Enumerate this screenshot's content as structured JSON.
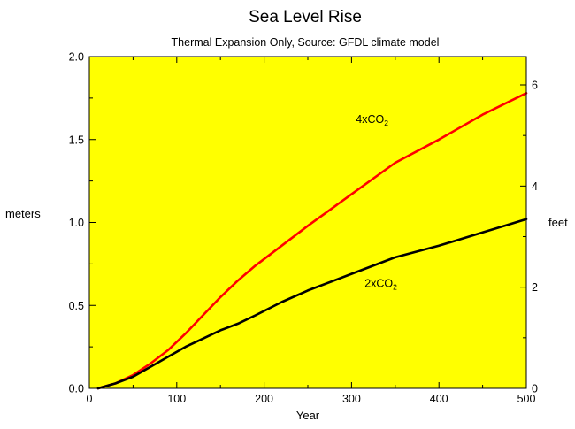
{
  "chart_data": {
    "type": "line",
    "title": "Sea Level Rise",
    "subtitle": "Thermal Expansion Only,  Source:  GFDL climate model",
    "xlabel": "Year",
    "ylabel_left": "meters",
    "ylabel_right": "feet",
    "xlim": [
      0,
      500
    ],
    "ylim": [
      0,
      2.0
    ],
    "y2lim_feet": [
      0,
      6.56
    ],
    "xticks": [
      "0",
      "100",
      "200",
      "300",
      "400",
      "500"
    ],
    "yticks": [
      "0.0",
      "0.5",
      "1.0",
      "1.5",
      "2.0"
    ],
    "y2ticks": [
      "0",
      "2",
      "4",
      "6"
    ],
    "grid": false,
    "legend": "none",
    "series": [
      {
        "name": "4xCO2",
        "label_base": "4xCO",
        "label_sub": "2",
        "color": "#ff0000",
        "x": [
          10,
          30,
          50,
          70,
          90,
          110,
          130,
          150,
          170,
          190,
          220,
          250,
          300,
          350,
          400,
          450,
          500
        ],
        "y": [
          0.0,
          0.03,
          0.08,
          0.15,
          0.23,
          0.33,
          0.44,
          0.55,
          0.65,
          0.74,
          0.86,
          0.98,
          1.17,
          1.36,
          1.5,
          1.65,
          1.78
        ]
      },
      {
        "name": "2xCO2",
        "label_base": "2xCO",
        "label_sub": "2",
        "color": "#000000",
        "x": [
          10,
          30,
          50,
          70,
          90,
          110,
          130,
          150,
          170,
          190,
          220,
          250,
          300,
          350,
          400,
          450,
          500
        ],
        "y": [
          0.0,
          0.03,
          0.07,
          0.13,
          0.19,
          0.25,
          0.3,
          0.35,
          0.39,
          0.44,
          0.52,
          0.59,
          0.69,
          0.79,
          0.86,
          0.94,
          1.02
        ]
      }
    ],
    "colors": {
      "plot_background": "#ffff00",
      "page_background": "#ffffff"
    }
  }
}
